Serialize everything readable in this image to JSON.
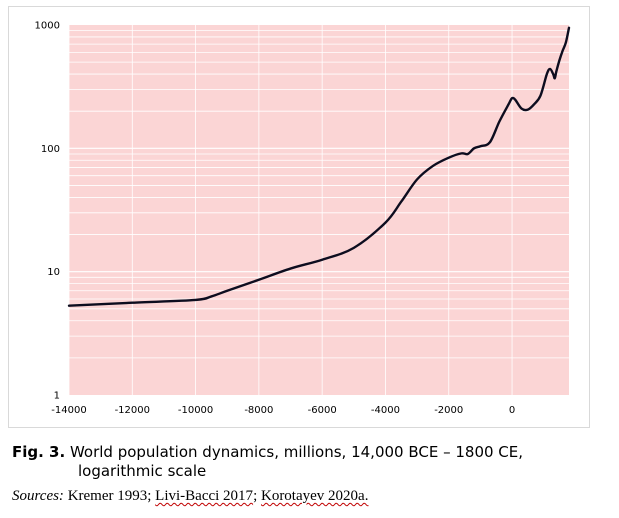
{
  "chart_data": {
    "type": "line",
    "title": "",
    "xlabel": "",
    "ylabel": "",
    "y_scale": "log",
    "xlim": [
      -14000,
      1800
    ],
    "ylim": [
      1,
      1000
    ],
    "x_ticks": [
      -14000,
      -12000,
      -10000,
      -8000,
      -6000,
      -4000,
      -2000,
      0
    ],
    "x_tick_labels": [
      "-14000",
      "-12000",
      "-10000",
      "-8000",
      "-6000",
      "-4000",
      "-2000",
      "0"
    ],
    "y_ticks": [
      1,
      10,
      100,
      1000
    ],
    "y_tick_labels": [
      "1",
      "10",
      "100",
      "1000"
    ],
    "grid": true,
    "plot_background": "#fbd5d5",
    "grid_color": "#ffffff",
    "line_color": "#0d0d1f",
    "series": [
      {
        "x": [
          -14000,
          -12000,
          -10000,
          -9500,
          -9000,
          -8000,
          -7000,
          -6000,
          -5000,
          -4000,
          -3500,
          -3000,
          -2500,
          -2000,
          -1600,
          -1400,
          -1200,
          -1000,
          -700,
          -400,
          -100,
          0,
          100,
          300,
          500,
          700,
          900,
          1100,
          1200,
          1300,
          1350,
          1400,
          1500,
          1600,
          1700,
          1800
        ],
        "y": [
          5.3,
          5.6,
          5.9,
          6.3,
          7.0,
          8.6,
          10.6,
          12.5,
          15.6,
          25,
          37,
          56,
          72,
          84,
          91,
          90,
          100,
          104,
          112,
          165,
          230,
          255,
          248,
          210,
          206,
          228,
          268,
          400,
          440,
          400,
          370,
          420,
          520,
          620,
          720,
          950
        ]
      }
    ]
  },
  "caption": {
    "label": "Fig. 3.",
    "text_line1": " World population dynamics, millions, 14,000 BCE – 1800 CE,",
    "text_line2": "logarithmic scale"
  },
  "sources": {
    "label": "Sources:",
    "items": [
      "Kremer 1993",
      "Livi-Bacci 2017",
      "Korotayev 2020a."
    ],
    "separator": "; "
  }
}
